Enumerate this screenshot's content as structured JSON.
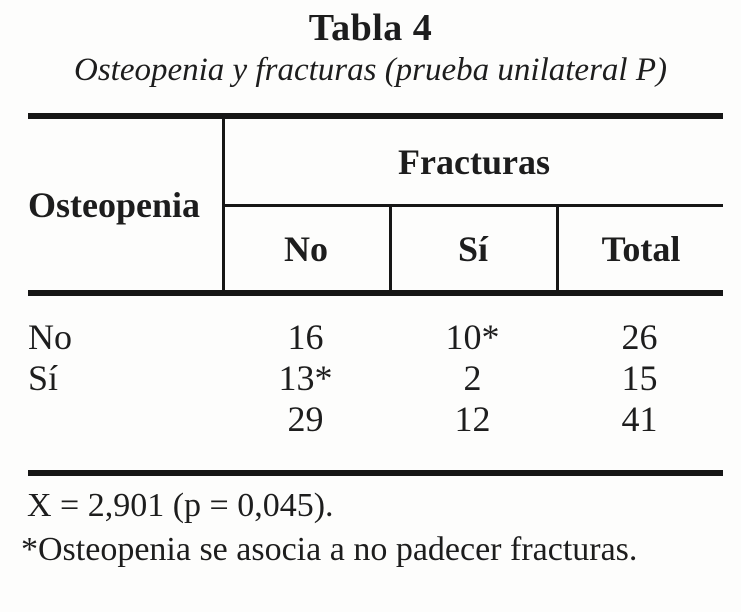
{
  "title": "Tabla 4",
  "subtitle": "Osteopenia y fracturas (prueba unilateral P)",
  "table": {
    "row_header": "Osteopenia",
    "col_group": "Fracturas",
    "col_headers": [
      "No",
      "Sí",
      "Total"
    ],
    "rows": [
      [
        "No",
        "16",
        "10*",
        "26"
      ],
      [
        "Sí",
        "13*",
        "2",
        "15"
      ],
      [
        "",
        "29",
        "12",
        "41"
      ]
    ]
  },
  "notes": [
    "X = 2,901 (p = 0,045).",
    "*Osteopenia se asocia a no padecer fracturas."
  ],
  "colors": {
    "background": "#fdfdfc",
    "text": "#1d1d1d",
    "rule": "#161616"
  }
}
